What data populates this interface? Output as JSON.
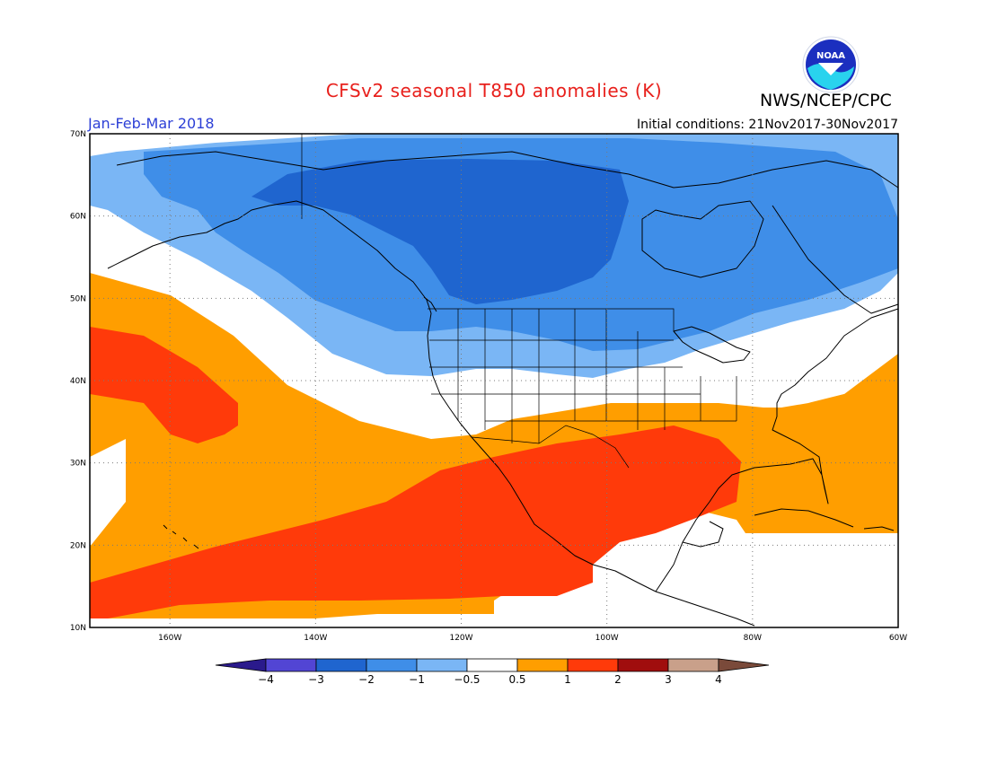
{
  "header": {
    "title": "CFSv2 seasonal T850 anomalies (K)",
    "organization": "NWS/NCEP/CPC",
    "season": "Jan-Feb-Mar 2018",
    "initial_conditions": "Initial conditions: 21Nov2017-30Nov2017",
    "logo_text": "NOAA"
  },
  "map": {
    "lon_range": [
      -171,
      -60
    ],
    "lat_range": [
      10,
      70
    ],
    "lat_labels": [
      "10N",
      "20N",
      "30N",
      "40N",
      "50N",
      "60N",
      "70N"
    ],
    "lon_labels": [
      "160W",
      "140W",
      "120W",
      "100W",
      "80W",
      "60W"
    ],
    "grid": true
  },
  "colorbar": {
    "labels": [
      "−4",
      "−3",
      "−2",
      "−1",
      "−0.5",
      "0.5",
      "1",
      "2",
      "3",
      "4"
    ],
    "colors": [
      "#2a1a8c",
      "#5245d4",
      "#1f65cf",
      "#3f8ee8",
      "#7ab6f5",
      "#ffffff",
      "#ff9e00",
      "#ff3a0a",
      "#a00d0d",
      "#c9a08a",
      "#7a4a3a"
    ]
  },
  "legend_colors": {
    "c_m3": "#1f65cf",
    "c_m2": "#3f8ee8",
    "c_m1": "#7ab6f5",
    "c_0": "#ffffff",
    "c_p1": "#ff9e00",
    "c_p2": "#ff3a0a"
  }
}
